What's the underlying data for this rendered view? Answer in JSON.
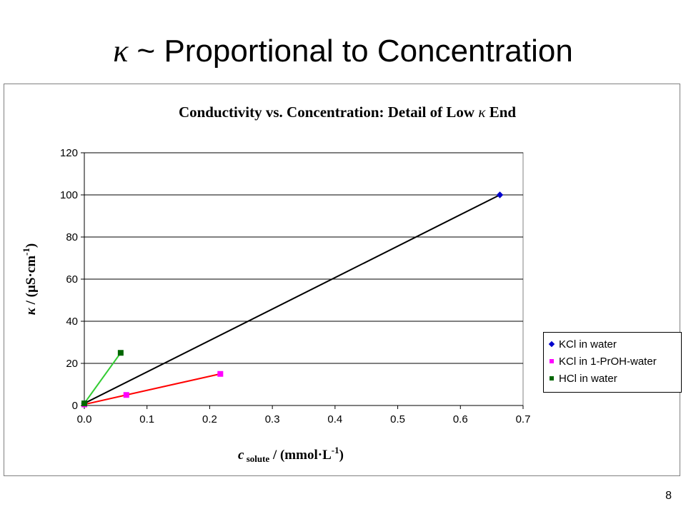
{
  "slide": {
    "title_symbol": "κ",
    "title_text": " ~ Proportional to Concentration",
    "page_number": "8"
  },
  "chart_data": {
    "type": "line",
    "title": "Conductivity vs. Concentration:  Detail of Low κ  End",
    "xlabel": "c solute / (mmol·L-1)",
    "ylabel": "κ / (µS·cm-1)",
    "xlim": [
      0,
      0.7
    ],
    "ylim": [
      0,
      120
    ],
    "x_ticks": [
      "0.0",
      "0.1",
      "0.2",
      "0.3",
      "0.4",
      "0.5",
      "0.6",
      "0.7"
    ],
    "y_ticks": [
      "0",
      "20",
      "40",
      "60",
      "80",
      "100",
      "120"
    ],
    "grid": "horizontal",
    "legend_position": "right",
    "series": [
      {
        "name": "KCl in water",
        "marker": "diamond",
        "marker_color": "#0000cc",
        "line_color": "#000000",
        "points": [
          [
            0,
            1
          ],
          [
            0.663,
            100
          ]
        ]
      },
      {
        "name": "KCl in 1-PrOH-water",
        "marker": "square",
        "marker_color": "#ff00ff",
        "line_color": "#ff0000",
        "points": [
          [
            0,
            0.5
          ],
          [
            0.067,
            5
          ],
          [
            0.217,
            15
          ]
        ]
      },
      {
        "name": "HCl in water",
        "marker": "square",
        "marker_color": "#006600",
        "line_color": "#33cc33",
        "points": [
          [
            0,
            1
          ],
          [
            0.058,
            25
          ]
        ]
      }
    ]
  }
}
